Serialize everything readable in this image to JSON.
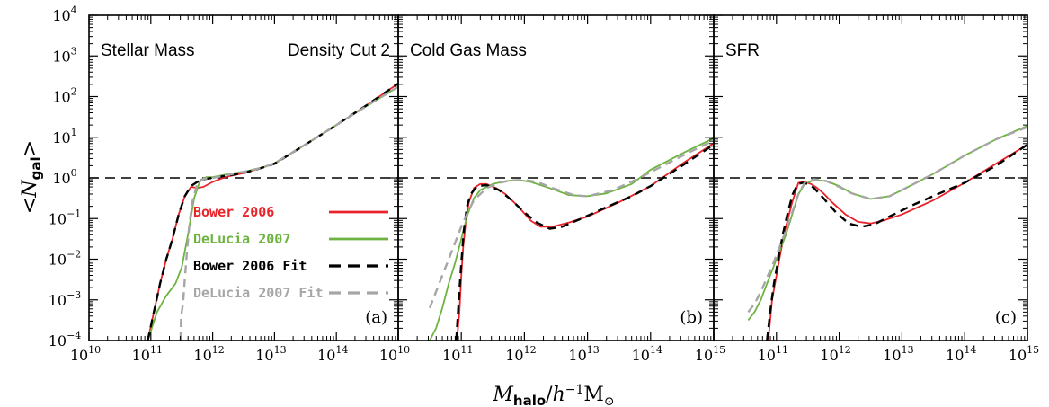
{
  "chart_data": {
    "type": "line",
    "xlabel": "M_halo/h^-1 M_sun",
    "ylabel": "<N_gal>",
    "xscale": "log",
    "yscale": "log",
    "xlim": [
      10,
      15
    ],
    "ylim": [
      -4,
      4
    ],
    "reference_line": 1,
    "x_tick_labels": [
      "10",
      "11",
      "12",
      "13",
      "14",
      "15"
    ],
    "y_tick_labels": [
      "-4",
      "-3",
      "-2",
      "-1",
      "0",
      "1",
      "2",
      "3",
      "4"
    ],
    "legend": {
      "placement": "center-left of panel (a)",
      "entries": [
        {
          "label": "Bower 2006",
          "color": "#e8232a",
          "style": "solid"
        },
        {
          "label": "DeLucia 2007",
          "color": "#6db33f",
          "style": "solid"
        },
        {
          "label": "Bower 2006 Fit",
          "color": "#000000",
          "style": "dashed"
        },
        {
          "label": "DeLucia 2007 Fit",
          "color": "#a6a6a6",
          "style": "dashed"
        }
      ]
    },
    "panels": [
      {
        "letter": "(a)",
        "title": "Stellar Mass",
        "subtitle": "Density Cut 2",
        "series": [
          {
            "name": "Bower 2006",
            "color": "#e8232a",
            "dash": false,
            "x": [
              10.95,
              11.05,
              11.15,
              11.25,
              11.35,
              11.45,
              11.55,
              11.65,
              11.75,
              11.85,
              12.0,
              12.2,
              12.5,
              12.8,
              13.0,
              13.5,
              14.0,
              14.5,
              15.0
            ],
            "y": [
              -4.0,
              -3.3,
              -2.6,
              -2.0,
              -1.5,
              -0.9,
              -0.45,
              -0.22,
              -0.25,
              -0.22,
              -0.1,
              0.02,
              0.12,
              0.25,
              0.35,
              0.82,
              1.3,
              1.8,
              2.32
            ]
          },
          {
            "name": "DeLucia 2007",
            "color": "#6db33f",
            "dash": false,
            "x": [
              10.95,
              11.1,
              11.25,
              11.4,
              11.5,
              11.6,
              11.7,
              11.8,
              11.9,
              12.0,
              12.2,
              12.5,
              12.8,
              13.0,
              13.5,
              14.0,
              14.5,
              15.0
            ],
            "y": [
              -4.0,
              -3.3,
              -2.9,
              -2.6,
              -2.2,
              -1.4,
              -0.5,
              -0.05,
              0.02,
              0.02,
              0.08,
              0.15,
              0.25,
              0.36,
              0.82,
              1.3,
              1.78,
              2.24
            ]
          },
          {
            "name": "Bower 2006 Fit",
            "color": "#000000",
            "dash": true,
            "x": [
              10.95,
              11.05,
              11.15,
              11.25,
              11.35,
              11.45,
              11.55,
              11.65,
              11.75,
              11.85,
              12.0,
              12.2,
              12.5,
              12.8,
              13.0,
              13.5,
              14.0,
              14.5,
              15.0
            ],
            "y": [
              -4.0,
              -3.3,
              -2.6,
              -2.0,
              -1.5,
              -0.9,
              -0.45,
              -0.2,
              -0.1,
              -0.03,
              0.0,
              0.05,
              0.12,
              0.25,
              0.35,
              0.82,
              1.3,
              1.8,
              2.32
            ]
          },
          {
            "name": "DeLucia 2007 Fit",
            "color": "#a6a6a6",
            "dash": true,
            "x": [
              11.48,
              11.49,
              11.52,
              11.55,
              11.58,
              11.62,
              11.67,
              11.75,
              11.85,
              12.0,
              12.2,
              12.5,
              12.8,
              13.0,
              13.5,
              14.0,
              14.5,
              15.0
            ],
            "y": [
              -4.0,
              -3.4,
              -3.1,
              -2.5,
              -1.9,
              -1.2,
              -0.6,
              -0.15,
              -0.02,
              0.0,
              0.06,
              0.15,
              0.25,
              0.36,
              0.82,
              1.3,
              1.78,
              2.24
            ]
          }
        ]
      },
      {
        "letter": "(b)",
        "title": "Cold Gas Mass",
        "subtitle": "",
        "series": [
          {
            "name": "Bower 2006",
            "color": "#e8232a",
            "dash": false,
            "x": [
              10.93,
              10.97,
              11.0,
              11.03,
              11.07,
              11.12,
              11.2,
              11.3,
              11.4,
              11.55,
              11.7,
              11.9,
              12.1,
              12.25,
              12.45,
              12.7,
              13.0,
              13.5,
              14.0,
              14.5,
              15.0
            ],
            "y": [
              -4.0,
              -3.3,
              -2.4,
              -1.7,
              -1.1,
              -0.6,
              -0.25,
              -0.15,
              -0.15,
              -0.25,
              -0.4,
              -0.7,
              -1.05,
              -1.2,
              -1.2,
              -1.1,
              -0.95,
              -0.6,
              -0.2,
              0.35,
              0.85
            ]
          },
          {
            "name": "DeLucia 2007",
            "color": "#6db33f",
            "dash": false,
            "x": [
              10.5,
              10.6,
              10.7,
              10.8,
              10.9,
              11.0,
              11.1,
              11.2,
              11.3,
              11.5,
              11.7,
              11.9,
              12.1,
              12.4,
              12.7,
              13.0,
              13.3,
              13.7,
              14.0,
              14.5,
              15.0
            ],
            "y": [
              -4.0,
              -3.7,
              -3.2,
              -2.6,
              -2.1,
              -1.5,
              -0.9,
              -0.5,
              -0.3,
              -0.15,
              -0.08,
              -0.05,
              -0.1,
              -0.25,
              -0.42,
              -0.45,
              -0.38,
              -0.15,
              0.2,
              0.6,
              0.98
            ]
          },
          {
            "name": "Bower 2006 Fit",
            "color": "#000000",
            "dash": true,
            "x": [
              10.92,
              10.96,
              11.0,
              11.04,
              11.09,
              11.15,
              11.25,
              11.4,
              11.6,
              11.8,
              12.0,
              12.2,
              12.4,
              12.6,
              12.9,
              13.3,
              13.7,
              14.0,
              14.5,
              15.0
            ],
            "y": [
              -4.0,
              -3.0,
              -2.1,
              -1.3,
              -0.7,
              -0.4,
              -0.2,
              -0.18,
              -0.3,
              -0.55,
              -0.85,
              -1.1,
              -1.25,
              -1.2,
              -1.0,
              -0.72,
              -0.45,
              -0.2,
              0.3,
              0.82
            ]
          },
          {
            "name": "DeLucia 2007 Fit",
            "color": "#a6a6a6",
            "dash": true,
            "x": [
              10.5,
              10.6,
              10.7,
              10.8,
              10.9,
              11.0,
              11.1,
              11.2,
              11.4,
              11.6,
              11.8,
              12.0,
              12.2,
              12.5,
              12.8,
              13.0,
              13.4,
              13.8,
              14.2,
              14.6,
              15.0
            ],
            "y": [
              -3.2,
              -2.8,
              -2.4,
              -2.0,
              -1.6,
              -1.2,
              -0.85,
              -0.55,
              -0.25,
              -0.12,
              -0.06,
              -0.05,
              -0.1,
              -0.28,
              -0.43,
              -0.45,
              -0.3,
              -0.02,
              0.3,
              0.62,
              0.92
            ]
          }
        ]
      },
      {
        "letter": "(c)",
        "title": "SFR",
        "subtitle": "",
        "series": [
          {
            "name": "Bower 2006",
            "color": "#e8232a",
            "dash": false,
            "x": [
              10.87,
              10.93,
              11.0,
              11.07,
              11.15,
              11.25,
              11.35,
              11.45,
              11.55,
              11.65,
              11.75,
              11.9,
              12.1,
              12.3,
              12.5,
              12.7,
              13.0,
              13.5,
              14.0,
              14.5,
              15.0
            ],
            "y": [
              -4.0,
              -3.0,
              -2.4,
              -1.8,
              -1.2,
              -0.6,
              -0.12,
              -0.1,
              -0.15,
              -0.25,
              -0.38,
              -0.62,
              -0.9,
              -1.08,
              -1.12,
              -1.05,
              -0.9,
              -0.55,
              -0.12,
              0.35,
              0.82
            ]
          },
          {
            "name": "DeLucia 2007",
            "color": "#6db33f",
            "dash": false,
            "x": [
              10.55,
              10.65,
              10.75,
              10.85,
              10.95,
              11.05,
              11.15,
              11.25,
              11.35,
              11.45,
              11.6,
              11.8,
              12.0,
              12.2,
              12.5,
              12.8,
              13.0,
              13.5,
              14.0,
              14.5,
              15.0
            ],
            "y": [
              -3.5,
              -3.3,
              -3.0,
              -2.6,
              -2.2,
              -1.8,
              -1.4,
              -0.9,
              -0.4,
              -0.15,
              -0.05,
              -0.08,
              -0.2,
              -0.38,
              -0.52,
              -0.45,
              -0.3,
              0.1,
              0.55,
              0.95,
              1.28
            ]
          },
          {
            "name": "Bower 2006 Fit",
            "color": "#000000",
            "dash": true,
            "x": [
              10.85,
              10.9,
              10.96,
              11.03,
              11.1,
              11.18,
              11.26,
              11.34,
              11.42,
              11.5,
              11.6,
              11.75,
              11.95,
              12.15,
              12.35,
              12.55,
              12.8,
              13.2,
              13.6,
              14.0,
              14.5,
              15.0
            ],
            "y": [
              -4.0,
              -3.3,
              -2.6,
              -2.0,
              -1.4,
              -0.85,
              -0.4,
              -0.15,
              -0.12,
              -0.15,
              -0.25,
              -0.5,
              -0.85,
              -1.12,
              -1.2,
              -1.15,
              -0.95,
              -0.65,
              -0.38,
              -0.12,
              0.3,
              0.82
            ]
          },
          {
            "name": "DeLucia 2007 Fit",
            "color": "#a6a6a6",
            "dash": true,
            "x": [
              10.55,
              10.65,
              10.75,
              10.85,
              10.95,
              11.05,
              11.15,
              11.25,
              11.35,
              11.45,
              11.6,
              11.8,
              12.0,
              12.2,
              12.5,
              12.8,
              13.0,
              13.5,
              14.0,
              14.5,
              15.0
            ],
            "y": [
              -3.3,
              -3.1,
              -2.8,
              -2.45,
              -2.1,
              -1.7,
              -1.3,
              -0.85,
              -0.4,
              -0.12,
              -0.03,
              -0.08,
              -0.22,
              -0.38,
              -0.52,
              -0.45,
              -0.3,
              0.1,
              0.55,
              0.95,
              1.25
            ]
          }
        ]
      }
    ]
  }
}
